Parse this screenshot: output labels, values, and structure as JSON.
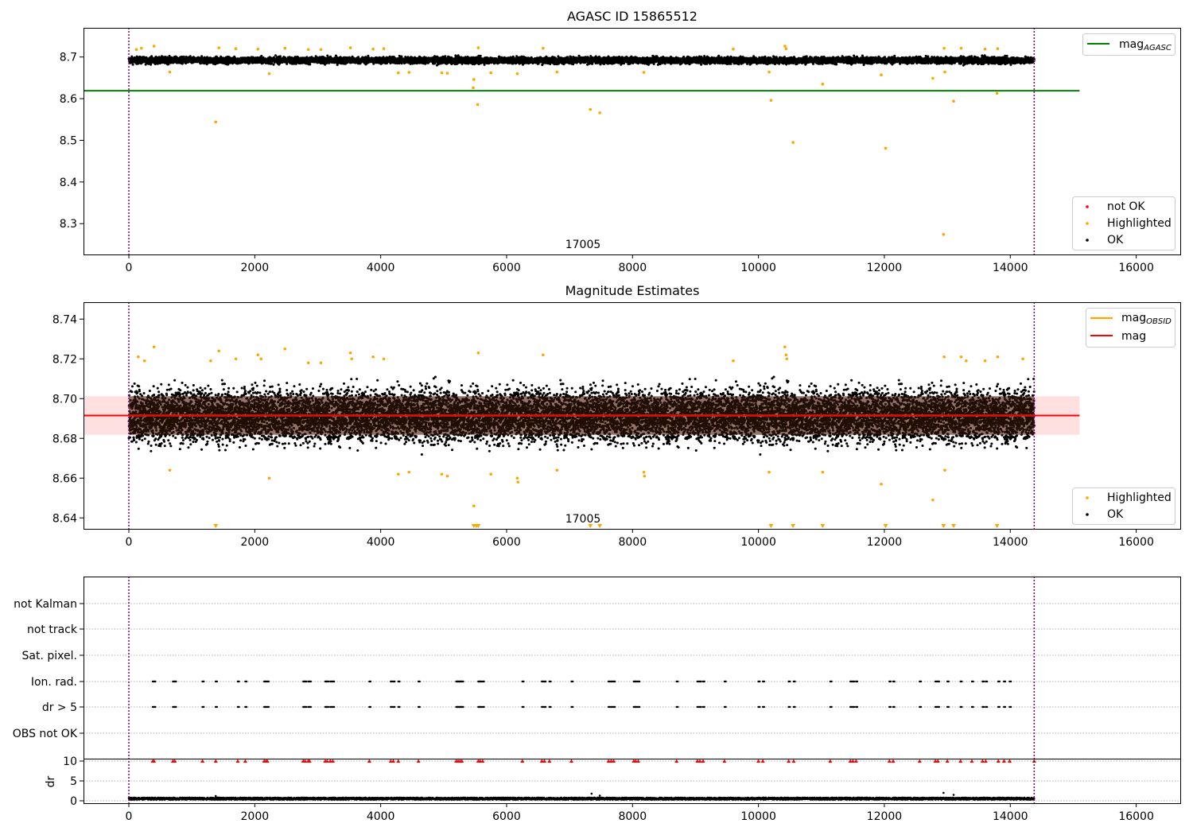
{
  "chart_data": [
    {
      "type": "scatter",
      "title": "AGASC ID 15865512",
      "xlim": [
        -720,
        16700
      ],
      "ylim": [
        8.226,
        8.77
      ],
      "xticks": [
        0,
        2000,
        4000,
        6000,
        8000,
        10000,
        12000,
        14000,
        16000
      ],
      "yticks": [
        8.3,
        8.4,
        8.5,
        8.6,
        8.7
      ],
      "xtick_labels": [
        "0",
        "2000",
        "4000",
        "6000",
        "8000",
        "10000",
        "12000",
        "14000",
        "16000"
      ],
      "ytick_labels": [
        "8.3",
        "8.4",
        "8.5",
        "8.6",
        "8.7"
      ],
      "obsid_boundaries": [
        0,
        14380
      ],
      "obsid_label": "17005",
      "obsid_label_x": 7190,
      "mag_agasc": 8.619,
      "mag_agasc_xrange": [
        -720,
        15100
      ],
      "ok_band": {
        "x": [
          0,
          14380
        ],
        "center": 8.692,
        "spread": 0.012
      },
      "highlighted_points": [
        {
          "x": 120,
          "y": 8.718
        },
        {
          "x": 200,
          "y": 8.721
        },
        {
          "x": 400,
          "y": 8.726
        },
        {
          "x": 650,
          "y": 8.664
        },
        {
          "x": 1380,
          "y": 8.544
        },
        {
          "x": 1430,
          "y": 8.722
        },
        {
          "x": 1700,
          "y": 8.72
        },
        {
          "x": 2050,
          "y": 8.719
        },
        {
          "x": 2230,
          "y": 8.66
        },
        {
          "x": 2480,
          "y": 8.721
        },
        {
          "x": 2850,
          "y": 8.718
        },
        {
          "x": 3050,
          "y": 8.718
        },
        {
          "x": 3520,
          "y": 8.722
        },
        {
          "x": 3880,
          "y": 8.719
        },
        {
          "x": 4050,
          "y": 8.72
        },
        {
          "x": 4280,
          "y": 8.662
        },
        {
          "x": 4450,
          "y": 8.663
        },
        {
          "x": 4970,
          "y": 8.662
        },
        {
          "x": 5060,
          "y": 8.661
        },
        {
          "x": 5480,
          "y": 8.646
        },
        {
          "x": 5470,
          "y": 8.626
        },
        {
          "x": 5550,
          "y": 8.722
        },
        {
          "x": 5540,
          "y": 8.586
        },
        {
          "x": 5750,
          "y": 8.662
        },
        {
          "x": 6170,
          "y": 8.66
        },
        {
          "x": 6580,
          "y": 8.721
        },
        {
          "x": 6800,
          "y": 8.664
        },
        {
          "x": 7330,
          "y": 8.574
        },
        {
          "x": 7480,
          "y": 8.566
        },
        {
          "x": 8180,
          "y": 8.663
        },
        {
          "x": 9600,
          "y": 8.719
        },
        {
          "x": 10170,
          "y": 8.664
        },
        {
          "x": 10200,
          "y": 8.596
        },
        {
          "x": 10420,
          "y": 8.726
        },
        {
          "x": 10440,
          "y": 8.72
        },
        {
          "x": 10550,
          "y": 8.495
        },
        {
          "x": 11020,
          "y": 8.635
        },
        {
          "x": 11950,
          "y": 8.657
        },
        {
          "x": 12020,
          "y": 8.481
        },
        {
          "x": 12770,
          "y": 8.649
        },
        {
          "x": 12950,
          "y": 8.721
        },
        {
          "x": 12940,
          "y": 8.274
        },
        {
          "x": 12960,
          "y": 8.664
        },
        {
          "x": 13100,
          "y": 8.594
        },
        {
          "x": 13220,
          "y": 8.721
        },
        {
          "x": 13600,
          "y": 8.719
        },
        {
          "x": 13800,
          "y": 8.72
        },
        {
          "x": 13790,
          "y": 8.613
        }
      ],
      "legend": {
        "lines": [
          {
            "label": "mag",
            "label_sub": "AGASC",
            "color": "#008000"
          }
        ],
        "points": [
          {
            "label": "not OK",
            "color": "#ff0000"
          },
          {
            "label": "Highlighted",
            "color": "#ffa500"
          },
          {
            "label": "OK",
            "color": "#000000"
          }
        ]
      }
    },
    {
      "type": "scatter",
      "title": "Magnitude Estimates",
      "xlim": [
        -720,
        16700
      ],
      "ylim": [
        8.6345,
        8.7485
      ],
      "xticks": [
        0,
        2000,
        4000,
        6000,
        8000,
        10000,
        12000,
        14000,
        16000
      ],
      "yticks": [
        8.64,
        8.66,
        8.68,
        8.7,
        8.72,
        8.74
      ],
      "xtick_labels": [
        "0",
        "2000",
        "4000",
        "6000",
        "8000",
        "10000",
        "12000",
        "14000",
        "16000"
      ],
      "ytick_labels": [
        "8.64",
        "8.66",
        "8.68",
        "8.70",
        "8.72",
        "8.74"
      ],
      "obsid_boundaries": [
        0,
        14380
      ],
      "obsid_label": "17005",
      "obsid_label_x": 7190,
      "mag": 8.6915,
      "mag_band": [
        8.6818,
        8.7012
      ],
      "mag_obsid_xrange": [
        0,
        14380
      ],
      "mag_xrange": [
        -720,
        15100
      ],
      "ok_band": {
        "x": [
          0,
          14380
        ],
        "center": 8.6915,
        "spread": 0.012
      },
      "highlighted_points": [
        {
          "x": 150,
          "y": 8.721
        },
        {
          "x": 250,
          "y": 8.719
        },
        {
          "x": 400,
          "y": 8.726
        },
        {
          "x": 650,
          "y": 8.664
        },
        {
          "x": 1300,
          "y": 8.719
        },
        {
          "x": 1430,
          "y": 8.724
        },
        {
          "x": 1700,
          "y": 8.72
        },
        {
          "x": 2050,
          "y": 8.722
        },
        {
          "x": 2100,
          "y": 8.72
        },
        {
          "x": 2230,
          "y": 8.66
        },
        {
          "x": 2480,
          "y": 8.725
        },
        {
          "x": 2850,
          "y": 8.718
        },
        {
          "x": 3050,
          "y": 8.718
        },
        {
          "x": 3520,
          "y": 8.723
        },
        {
          "x": 3540,
          "y": 8.72
        },
        {
          "x": 3880,
          "y": 8.721
        },
        {
          "x": 4050,
          "y": 8.72
        },
        {
          "x": 4280,
          "y": 8.662
        },
        {
          "x": 4450,
          "y": 8.663
        },
        {
          "x": 4970,
          "y": 8.662
        },
        {
          "x": 5060,
          "y": 8.661
        },
        {
          "x": 5480,
          "y": 8.646
        },
        {
          "x": 5550,
          "y": 8.723
        },
        {
          "x": 5750,
          "y": 8.662
        },
        {
          "x": 6170,
          "y": 8.66
        },
        {
          "x": 6180,
          "y": 8.658
        },
        {
          "x": 6580,
          "y": 8.722
        },
        {
          "x": 6800,
          "y": 8.664
        },
        {
          "x": 8180,
          "y": 8.663
        },
        {
          "x": 8190,
          "y": 8.661
        },
        {
          "x": 9600,
          "y": 8.719
        },
        {
          "x": 10170,
          "y": 8.663
        },
        {
          "x": 10420,
          "y": 8.726
        },
        {
          "x": 10440,
          "y": 8.722
        },
        {
          "x": 10450,
          "y": 8.72
        },
        {
          "x": 11020,
          "y": 8.663
        },
        {
          "x": 11950,
          "y": 8.657
        },
        {
          "x": 12770,
          "y": 8.649
        },
        {
          "x": 12950,
          "y": 8.721
        },
        {
          "x": 12960,
          "y": 8.664
        },
        {
          "x": 13220,
          "y": 8.721
        },
        {
          "x": 13300,
          "y": 8.719
        },
        {
          "x": 13600,
          "y": 8.719
        },
        {
          "x": 13800,
          "y": 8.721
        },
        {
          "x": 14200,
          "y": 8.72
        }
      ],
      "clipped_low_x": [
        1380,
        5480,
        5520,
        5550,
        7330,
        7480,
        10200,
        10550,
        11020,
        12020,
        12940,
        13100,
        13790
      ],
      "legend": {
        "lines": [
          {
            "label": "mag",
            "label_sub": "OBSID",
            "color": "#ffa500"
          },
          {
            "label": "mag",
            "label_sub": "",
            "color": "#ff0000"
          }
        ],
        "points": [
          {
            "label": "Highlighted",
            "color": "#ffa500"
          },
          {
            "label": "OK",
            "color": "#000000"
          }
        ]
      }
    },
    {
      "type": "scatter",
      "xlim": [
        -720,
        16700
      ],
      "xticks": [
        0,
        2000,
        4000,
        6000,
        8000,
        10000,
        12000,
        14000,
        16000
      ],
      "xtick_labels": [
        "0",
        "2000",
        "4000",
        "6000",
        "8000",
        "10000",
        "12000",
        "14000",
        "16000"
      ],
      "flag_rows": [
        "not Kalman",
        "not track",
        "Sat. pixel.",
        "Ion. rad.",
        "dr > 5",
        "OBS not OK"
      ],
      "flag_events_x": [
        380,
        400,
        700,
        730,
        1170,
        1380,
        1730,
        1850,
        2150,
        2180,
        2200,
        2770,
        2800,
        2850,
        2870,
        3120,
        3150,
        3200,
        3240,
        3820,
        4160,
        4200,
        4280,
        4600,
        5200,
        5230,
        5260,
        5290,
        5550,
        5580,
        5620,
        6250,
        6560,
        6600,
        6680,
        7030,
        7620,
        7660,
        7700,
        8020,
        8050,
        8090,
        8700,
        9030,
        9070,
        9120,
        9460,
        10000,
        10070,
        10480,
        10560,
        11140,
        11460,
        11500,
        11550,
        12080,
        12140,
        12560,
        12810,
        12850,
        13000,
        13210,
        13390,
        13560,
        13610,
        13810,
        13900,
        13990
      ],
      "dr_ylim": [
        -0.6,
        10.4
      ],
      "dr_yticks": [
        0,
        5,
        10
      ],
      "dr_ytick_labels": [
        "0",
        "5",
        "10"
      ],
      "dr_ylabel": "dr",
      "dr_clip_value": 10,
      "dr_baseline": 0.3,
      "dr_spikes": [
        {
          "x": 1380,
          "y": 1.2
        },
        {
          "x": 7350,
          "y": 1.8
        },
        {
          "x": 7480,
          "y": 1.3
        },
        {
          "x": 12940,
          "y": 2.0
        },
        {
          "x": 13100,
          "y": 1.5
        }
      ]
    }
  ]
}
